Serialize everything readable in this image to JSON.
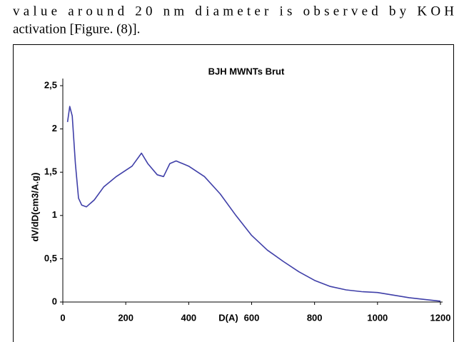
{
  "paragraph": [
    "value around 20 nm diameter is observed by KOH",
    "activation [Figure. (8)]."
  ],
  "chart_data": {
    "type": "line",
    "title": "BJH MWNTs Brut",
    "xlabel": "D(A)",
    "ylabel": "dV/dD(cm3/A.g)",
    "x": [
      15,
      22,
      30,
      40,
      50,
      60,
      75,
      100,
      130,
      170,
      220,
      250,
      270,
      300,
      320,
      340,
      360,
      400,
      450,
      500,
      550,
      600,
      650,
      700,
      750,
      800,
      850,
      900,
      950,
      1000,
      1050,
      1100,
      1150,
      1200
    ],
    "series": [
      {
        "name": "BJH MWNTs Brut",
        "color": "#3f3fa8",
        "values": [
          2.08,
          2.26,
          2.15,
          1.6,
          1.2,
          1.12,
          1.1,
          1.18,
          1.33,
          1.45,
          1.57,
          1.72,
          1.6,
          1.47,
          1.45,
          1.6,
          1.63,
          1.57,
          1.45,
          1.25,
          1.0,
          0.77,
          0.6,
          0.47,
          0.35,
          0.25,
          0.18,
          0.14,
          0.12,
          0.11,
          0.08,
          0.05,
          0.03,
          0.01
        ]
      }
    ],
    "xlim": [
      0,
      1200
    ],
    "xticks": [
      0,
      200,
      400,
      600,
      800,
      1000,
      1200
    ],
    "ylim": [
      0,
      2.5
    ],
    "yticks": [
      0,
      {
        "value": 0.5,
        "label": "0,5"
      },
      1,
      {
        "value": 1.5,
        "label": "1,5"
      },
      2,
      {
        "value": 2.5,
        "label": "2,5"
      }
    ],
    "grid": false
  }
}
